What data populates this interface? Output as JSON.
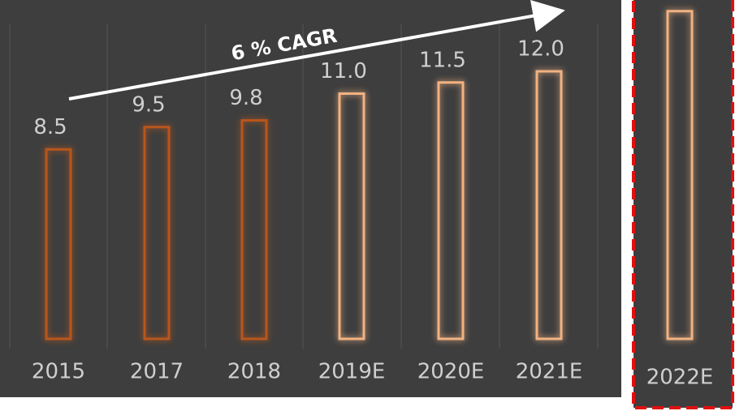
{
  "chart_data": {
    "type": "bar",
    "categories": [
      "2015",
      "2017",
      "2018",
      "2019E",
      "2020E",
      "2021E",
      "2022E"
    ],
    "values": [
      8.5,
      9.5,
      9.8,
      11.0,
      11.5,
      12.0,
      14.7
    ],
    "value_labels": [
      "8.5",
      "9.5",
      "9.8",
      "11.0",
      "11.5",
      "12.0",
      null
    ],
    "colors": [
      "#b8561e",
      "#b8561e",
      "#b8561e",
      "#f2b282",
      "#f2b282",
      "#f2b282",
      "#f2b282"
    ],
    "ylim": [
      0,
      15.2
    ],
    "annotation": "6 % CAGR"
  }
}
